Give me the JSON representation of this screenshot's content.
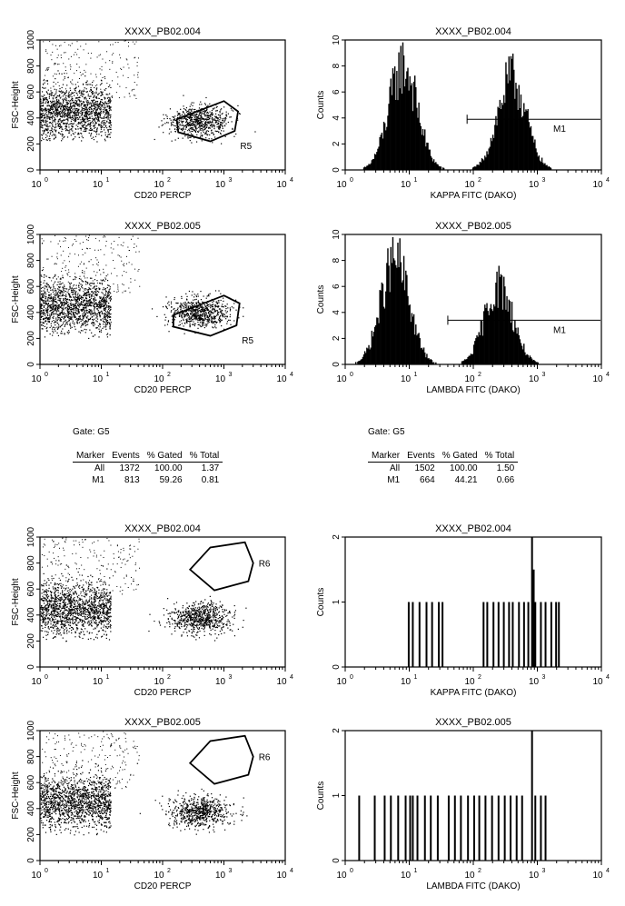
{
  "chart_data": [
    {
      "id": "p1",
      "type": "scatter",
      "title": "XXXX_PB02.004",
      "xlabel": "CD20 PERCP",
      "ylabel": "FSC-Height",
      "xscale": "log",
      "xlim": [
        1,
        10000
      ],
      "ylim": [
        0,
        1000
      ],
      "xticks": [
        "10",
        "10",
        "10",
        "10",
        "10"
      ],
      "xtick_exp": [
        "0",
        "1",
        "2",
        "3",
        "4"
      ],
      "yticks": [
        "0",
        "200",
        "400",
        "600",
        "800",
        "1000"
      ],
      "region": {
        "label": "R5",
        "polygon": [
          [
            170,
            390
          ],
          [
            1000,
            530
          ],
          [
            1700,
            450
          ],
          [
            1500,
            300
          ],
          [
            600,
            220
          ],
          [
            180,
            290
          ]
        ]
      },
      "clusters": [
        {
          "x": [
            1,
            10
          ],
          "y": [
            450,
            100
          ]
        },
        {
          "x": [
            400,
            140
          ],
          "y": [
            380,
            60
          ]
        }
      ],
      "gated_count": 1372
    },
    {
      "id": "p2",
      "type": "histogram",
      "title": "XXXX_PB02.004",
      "xlabel": "KAPPA FITC (DAKO)",
      "ylabel": "Counts",
      "xscale": "log",
      "xlim": [
        1,
        10000
      ],
      "ylim": [
        0,
        10
      ],
      "xticks": [
        "10",
        "10",
        "10",
        "10",
        "10"
      ],
      "xtick_exp": [
        "0",
        "1",
        "2",
        "3",
        "4"
      ],
      "yticks": [
        "0",
        "2",
        "4",
        "6",
        "8",
        "10"
      ],
      "peaks": [
        {
          "x": 8,
          "height": 8
        },
        {
          "x": 400,
          "height": 7
        }
      ],
      "marker": {
        "label": "M1",
        "x_range": [
          80,
          10000
        ],
        "y": 3.9
      }
    },
    {
      "id": "p3",
      "type": "scatter",
      "title": "XXXX_PB02.005",
      "xlabel": "CD20 PERCP",
      "ylabel": "FSC-Height",
      "xscale": "log",
      "xlim": [
        1,
        10000
      ],
      "ylim": [
        0,
        1000
      ],
      "xticks": [
        "10",
        "10",
        "10",
        "10",
        "10"
      ],
      "xtick_exp": [
        "0",
        "1",
        "2",
        "3",
        "4"
      ],
      "yticks": [
        "0",
        "200",
        "400",
        "600",
        "800",
        "1000"
      ],
      "region": {
        "label": "R5",
        "polygon": [
          [
            150,
            380
          ],
          [
            1000,
            530
          ],
          [
            1800,
            470
          ],
          [
            1600,
            300
          ],
          [
            600,
            220
          ],
          [
            150,
            290
          ]
        ]
      },
      "clusters": [
        {
          "x": [
            1,
            10
          ],
          "y": [
            450,
            100
          ]
        },
        {
          "x": [
            400,
            140
          ],
          "y": [
            400,
            60
          ]
        }
      ],
      "gated_count": 1502
    },
    {
      "id": "p4",
      "type": "histogram",
      "title": "XXXX_PB02.005",
      "xlabel": "LAMBDA FITC (DAKO)",
      "ylabel": "Counts",
      "xscale": "log",
      "xlim": [
        1,
        10000
      ],
      "ylim": [
        0,
        10
      ],
      "xticks": [
        "10",
        "10",
        "10",
        "10",
        "10"
      ],
      "xtick_exp": [
        "0",
        "1",
        "2",
        "3",
        "4"
      ],
      "yticks": [
        "0",
        "2",
        "4",
        "6",
        "8",
        "10"
      ],
      "peaks": [
        {
          "x": 6,
          "height": 8
        },
        {
          "x": 250,
          "height": 6
        }
      ],
      "marker": {
        "label": "M1",
        "x_range": [
          40,
          10000
        ],
        "y": 3.4
      }
    },
    {
      "id": "p5",
      "type": "scatter",
      "title": "XXXX_PB02.004",
      "xlabel": "CD20 PERCP",
      "ylabel": "FSC-Height",
      "xscale": "log",
      "xlim": [
        1,
        10000
      ],
      "ylim": [
        0,
        1000
      ],
      "xticks": [
        "10",
        "10",
        "10",
        "10",
        "10"
      ],
      "xtick_exp": [
        "0",
        "1",
        "2",
        "3",
        "4"
      ],
      "yticks": [
        "0",
        "200",
        "400",
        "600",
        "800",
        "1000"
      ],
      "region": {
        "label": "R6",
        "polygon": [
          [
            280,
            750
          ],
          [
            700,
            590
          ],
          [
            2500,
            660
          ],
          [
            3000,
            800
          ],
          [
            2200,
            960
          ],
          [
            600,
            920
          ]
        ]
      },
      "clusters": [
        {
          "x": [
            1,
            10
          ],
          "y": [
            450,
            100
          ]
        },
        {
          "x": [
            400,
            140
          ],
          "y": [
            380,
            60
          ]
        }
      ],
      "gated_count": 0
    },
    {
      "id": "p6",
      "type": "histogram",
      "title": "XXXX_PB02.004",
      "xlabel": "KAPPA FITC (DAKO)",
      "ylabel": "Counts",
      "xscale": "log",
      "xlim": [
        1,
        10000
      ],
      "ylim": [
        0,
        2
      ],
      "xticks": [
        "10",
        "10",
        "10",
        "10",
        "10"
      ],
      "xtick_exp": [
        "0",
        "1",
        "2",
        "3",
        "4"
      ],
      "yticks": [
        "0",
        "1",
        "2"
      ],
      "bars": [
        [
          9.5,
          1
        ],
        [
          11,
          1
        ],
        [
          14,
          1
        ],
        [
          18,
          1
        ],
        [
          22,
          1
        ],
        [
          28,
          1
        ],
        [
          32,
          1
        ],
        [
          140,
          1
        ],
        [
          160,
          1
        ],
        [
          200,
          1
        ],
        [
          240,
          1
        ],
        [
          290,
          1
        ],
        [
          350,
          1
        ],
        [
          400,
          1
        ],
        [
          500,
          1
        ],
        [
          600,
          1
        ],
        [
          700,
          1
        ],
        [
          800,
          2
        ],
        [
          850,
          1.5
        ],
        [
          900,
          1
        ],
        [
          1100,
          1
        ],
        [
          1300,
          1
        ],
        [
          1600,
          1
        ],
        [
          1900,
          1
        ],
        [
          2100,
          1
        ]
      ]
    },
    {
      "id": "p7",
      "type": "scatter",
      "title": "XXXX_PB02.005",
      "xlabel": "CD20 PERCP",
      "ylabel": "FSC-Height",
      "xscale": "log",
      "xlim": [
        1,
        10000
      ],
      "ylim": [
        0,
        1000
      ],
      "xticks": [
        "10",
        "10",
        "10",
        "10",
        "10"
      ],
      "xtick_exp": [
        "0",
        "1",
        "2",
        "3",
        "4"
      ],
      "yticks": [
        "0",
        "200",
        "400",
        "600",
        "800",
        "1000"
      ],
      "region": {
        "label": "R6",
        "polygon": [
          [
            280,
            750
          ],
          [
            700,
            590
          ],
          [
            2500,
            660
          ],
          [
            3000,
            800
          ],
          [
            2200,
            960
          ],
          [
            600,
            920
          ]
        ]
      },
      "clusters": [
        {
          "x": [
            1,
            10
          ],
          "y": [
            450,
            100
          ]
        },
        {
          "x": [
            400,
            140
          ],
          "y": [
            380,
            60
          ]
        }
      ],
      "gated_count": 0
    },
    {
      "id": "p8",
      "type": "histogram",
      "title": "XXXX_PB02.005",
      "xlabel": "LAMBDA FITC (DAKO)",
      "ylabel": "Counts",
      "xscale": "log",
      "xlim": [
        1,
        10000
      ],
      "ylim": [
        0,
        2
      ],
      "xticks": [
        "10",
        "10",
        "10",
        "10",
        "10"
      ],
      "xtick_exp": [
        "0",
        "1",
        "2",
        "3",
        "4"
      ],
      "yticks": [
        "0",
        "1",
        "2"
      ],
      "bars": [
        [
          1.6,
          1
        ],
        [
          2.8,
          1
        ],
        [
          4,
          1
        ],
        [
          5,
          1
        ],
        [
          6.5,
          1
        ],
        [
          8.5,
          1
        ],
        [
          10,
          1
        ],
        [
          11,
          1
        ],
        [
          13,
          1
        ],
        [
          17,
          1
        ],
        [
          21,
          1
        ],
        [
          27,
          1
        ],
        [
          40,
          1
        ],
        [
          50,
          1
        ],
        [
          62,
          1
        ],
        [
          80,
          1
        ],
        [
          100,
          1
        ],
        [
          120,
          1
        ],
        [
          150,
          1
        ],
        [
          190,
          1
        ],
        [
          240,
          1
        ],
        [
          300,
          1
        ],
        [
          370,
          1
        ],
        [
          460,
          1
        ],
        [
          560,
          1
        ],
        [
          800,
          2
        ],
        [
          900,
          1
        ],
        [
          1100,
          1
        ],
        [
          1300,
          1
        ]
      ]
    }
  ],
  "stats": [
    {
      "gate": "Gate: G5",
      "headers": [
        "Marker",
        "Events",
        "% Gated",
        "% Total"
      ],
      "rows": [
        [
          "All",
          "1372",
          "100.00",
          "1.37"
        ],
        [
          "M1",
          "813",
          "59.26",
          "0.81"
        ]
      ]
    },
    {
      "gate": "Gate: G5",
      "headers": [
        "Marker",
        "Events",
        "% Gated",
        "% Total"
      ],
      "rows": [
        [
          "All",
          "1502",
          "100.00",
          "1.50"
        ],
        [
          "M1",
          "664",
          "44.21",
          "0.66"
        ]
      ]
    }
  ]
}
